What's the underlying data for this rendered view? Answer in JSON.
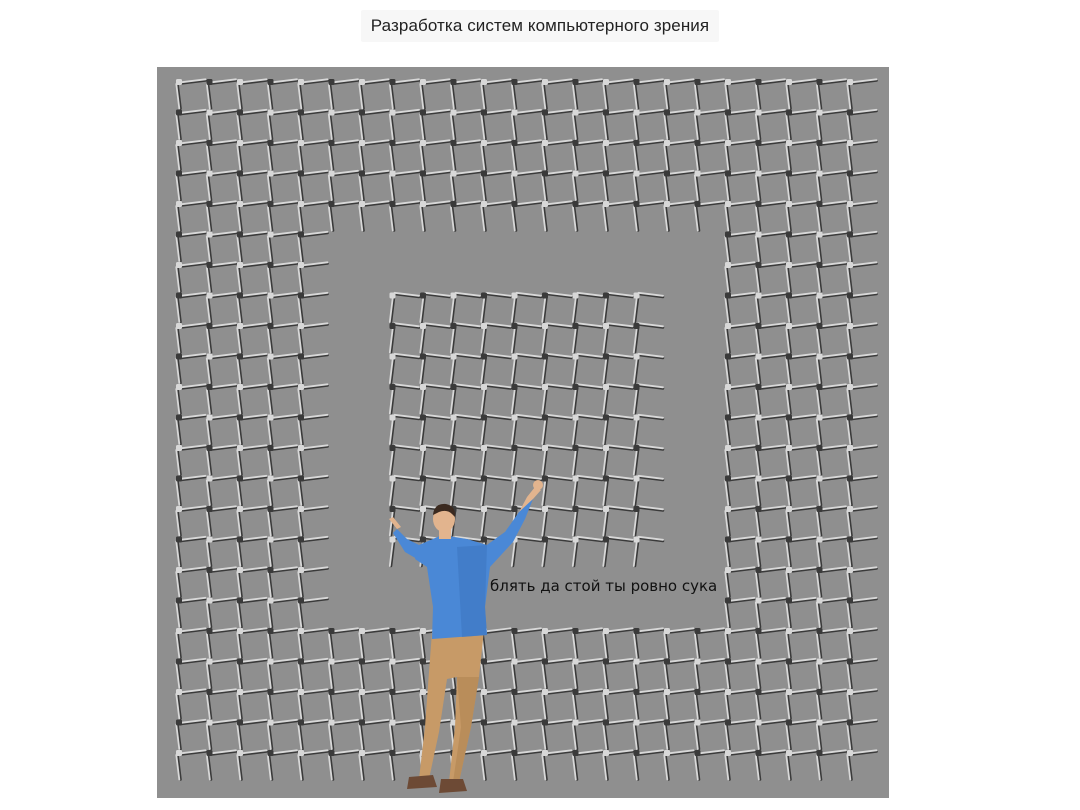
{
  "header": {
    "title": "Разработка систем компьютерного зрения"
  },
  "meme": {
    "caption": "блять да стой ты ровно сука",
    "colors": {
      "background": "#8f8f8f",
      "grid_light": "#d8d8d8",
      "grid_dark": "#3a3a3a",
      "shirt": "#4a88d6",
      "pants": "#c79a67",
      "skin": "#e2b48e",
      "hair": "#3b2a20",
      "shoes": "#6d4a35"
    }
  }
}
